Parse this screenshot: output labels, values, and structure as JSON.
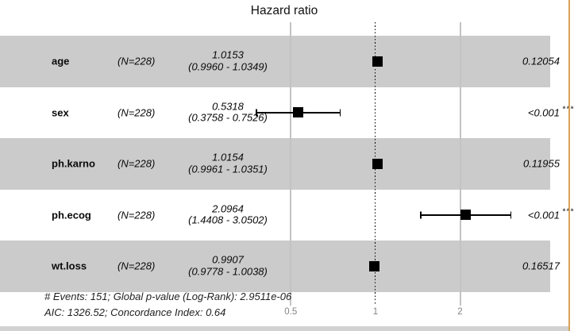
{
  "title": "Hazard ratio",
  "rows": [
    {
      "var": "age",
      "n": "(N=228)",
      "est": "1.0153",
      "ci": "(0.9960 - 1.0349)",
      "p": "0.12054",
      "stars": ""
    },
    {
      "var": "sex",
      "n": "(N=228)",
      "est": "0.5318",
      "ci": "(0.3758 - 0.7526)",
      "p": "<0.001",
      "stars": "***"
    },
    {
      "var": "ph.karno",
      "n": "(N=228)",
      "est": "1.0154",
      "ci": "(0.9961 - 1.0351)",
      "p": "0.11955",
      "stars": ""
    },
    {
      "var": "ph.ecog",
      "n": "(N=228)",
      "est": "2.0964",
      "ci": "(1.4408 - 3.0502)",
      "p": "<0.001",
      "stars": "***"
    },
    {
      "var": "wt.loss",
      "n": "(N=228)",
      "est": "0.9907",
      "ci": "(0.9778 - 1.0038)",
      "p": "0.16517",
      "stars": ""
    }
  ],
  "footer": {
    "line1": "# Events: 151; Global p-value (Log-Rank): 2.9511e-06",
    "line2": "AIC: 1326.52; Concordance Index: 0.64"
  },
  "colors": {
    "stripe": "#cbcbcb",
    "marker": "#000000",
    "tick_label": "#838383",
    "pane_border": "#d8a35a"
  },
  "chart_data": {
    "type": "scatter",
    "subtype": "forest-plot",
    "title": "Hazard ratio",
    "categories": [
      "age",
      "sex",
      "ph.karno",
      "ph.ecog",
      "wt.loss"
    ],
    "series": [
      {
        "name": "Hazard ratio",
        "values": [
          1.0153,
          0.5318,
          1.0154,
          2.0964,
          0.9907
        ]
      }
    ],
    "ci_lower": [
      0.996,
      0.3758,
      0.9961,
      1.4408,
      0.9778
    ],
    "ci_upper": [
      1.0349,
      0.7526,
      1.0351,
      3.0502,
      1.0038
    ],
    "n_labels": [
      "(N=228)",
      "(N=228)",
      "(N=228)",
      "(N=228)",
      "(N=228)"
    ],
    "p_values": [
      "0.12054",
      "<0.001 ***",
      "0.11955",
      "<0.001 ***",
      "0.16517"
    ],
    "x_scale": "log",
    "x_ticks": [
      {
        "label": "0.5",
        "value": 0.5
      },
      {
        "label": "1",
        "value": 1
      },
      {
        "label": "2",
        "value": 2
      }
    ],
    "reference_line": 1,
    "xlim": [
      0.34,
      3.4
    ],
    "grid": "vertical",
    "legend": "none",
    "annotations": [
      "# Events: 151; Global p-value (Log-Rank): 2.9511e-06",
      "AIC: 1326.52; Concordance Index: 0.64"
    ]
  }
}
